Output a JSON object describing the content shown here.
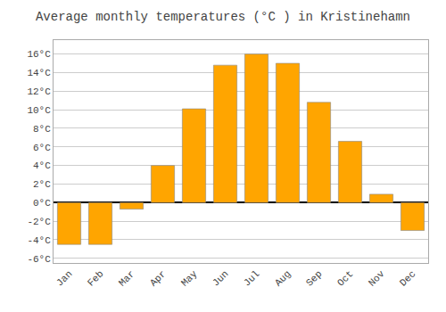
{
  "chart_data": {
    "type": "bar",
    "title": "Average monthly temperatures (°C ) in Kristinehamn",
    "categories": [
      "Jan",
      "Feb",
      "Mar",
      "Apr",
      "May",
      "Jun",
      "Jul",
      "Aug",
      "Sep",
      "Oct",
      "Nov",
      "Dec"
    ],
    "values": [
      -4.5,
      -4.5,
      -0.7,
      4.0,
      10.1,
      14.8,
      16.0,
      15.0,
      10.8,
      6.6,
      0.9,
      -3.0
    ],
    "color": "#FFA500",
    "ylim": [
      -6.5,
      17.5
    ],
    "yticks": [
      {
        "value": -6,
        "label": "-6°C"
      },
      {
        "value": -4,
        "label": "-4°C"
      },
      {
        "value": -2,
        "label": "-2°C"
      },
      {
        "value": 0,
        "label": "0°C"
      },
      {
        "value": 2,
        "label": "2°C"
      },
      {
        "value": 4,
        "label": "4°C"
      },
      {
        "value": 6,
        "label": "6°C"
      },
      {
        "value": 8,
        "label": "8°C"
      },
      {
        "value": 10,
        "label": "10°C"
      },
      {
        "value": 12,
        "label": "12°C"
      },
      {
        "value": 14,
        "label": "14°C"
      },
      {
        "value": 16,
        "label": "16°C"
      }
    ],
    "grid": true
  }
}
